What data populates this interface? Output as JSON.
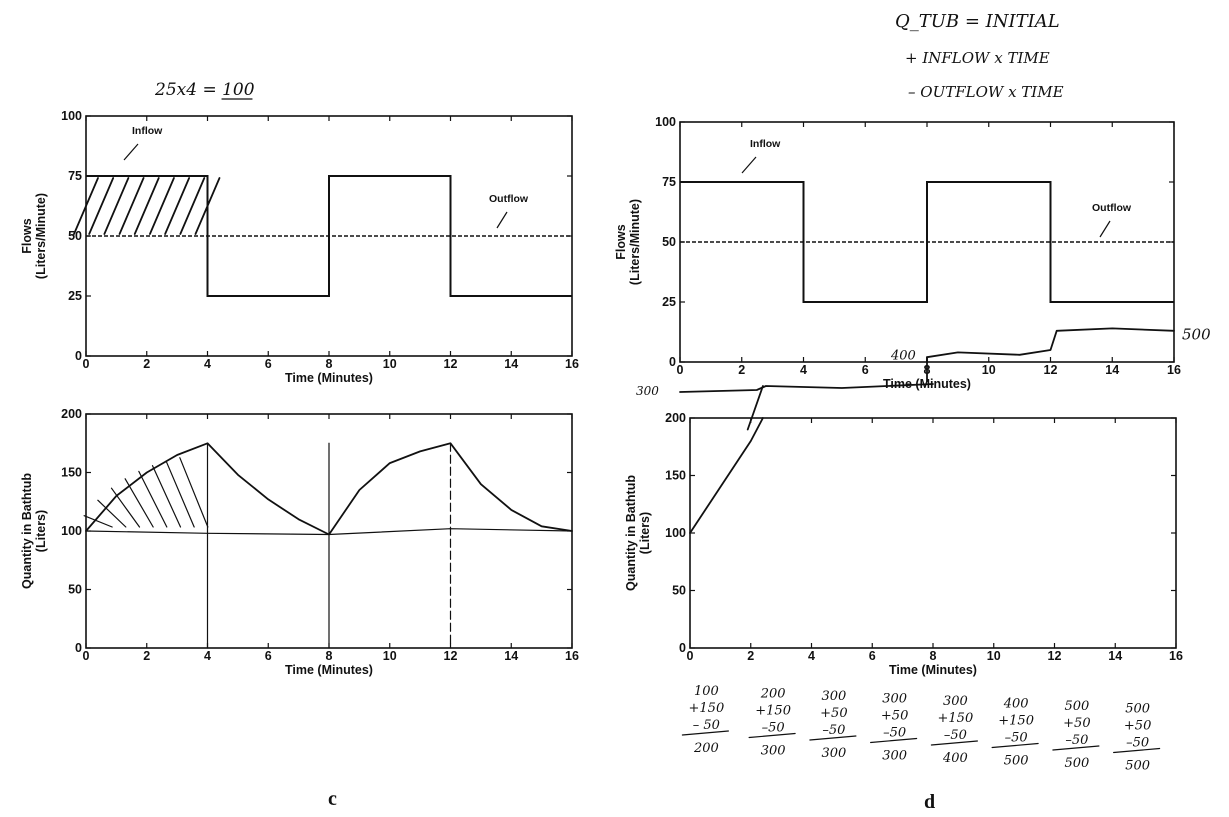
{
  "chart_data": [
    {
      "id": "c",
      "panel_label": "c",
      "handwritten_note": "25x4 = 100",
      "subplots": [
        {
          "type": "line",
          "xlabel": "Time (Minutes)",
          "ylabel": [
            "Flows",
            "(Liters/Minute)"
          ],
          "xlim": [
            0,
            16
          ],
          "ylim": [
            0,
            100
          ],
          "xticks": [
            0,
            2,
            4,
            6,
            8,
            10,
            12,
            14,
            16
          ],
          "yticks": [
            0,
            25,
            50,
            75,
            100
          ],
          "series": [
            {
              "name": "Inflow",
              "style": "solid",
              "x": [
                0,
                4,
                4,
                8,
                8,
                12,
                12,
                16
              ],
              "y": [
                75,
                75,
                25,
                25,
                75,
                75,
                25,
                25
              ]
            },
            {
              "name": "Outflow",
              "style": "dashed",
              "x": [
                0,
                16
              ],
              "y": [
                50,
                50
              ]
            }
          ],
          "annotations": [
            "Inflow",
            "Outflow"
          ],
          "hatched_region": {
            "x": [
              0,
              4
            ],
            "y": [
              50,
              75
            ]
          }
        },
        {
          "type": "line",
          "xlabel": "Time (Minutes)",
          "ylabel": [
            "Quantity in Bathtub",
            "(Liters)"
          ],
          "xlim": [
            0,
            16
          ],
          "ylim": [
            0,
            200
          ],
          "xticks": [
            0,
            2,
            4,
            6,
            8,
            10,
            12,
            14,
            16
          ],
          "yticks": [
            0,
            50,
            100,
            150,
            200
          ],
          "series": [
            {
              "name": "",
              "style": "hand-drawn",
              "x": [
                0,
                1,
                2,
                3,
                4,
                5,
                6,
                7,
                8,
                9,
                10,
                11,
                12,
                13,
                14,
                15,
                16
              ],
              "y": [
                100,
                130,
                150,
                165,
                175,
                148,
                127,
                110,
                97,
                135,
                158,
                168,
                175,
                140,
                118,
                104,
                100
              ]
            },
            {
              "name": "",
              "style": "hand-drawn",
              "x": [
                0,
                4,
                8,
                12,
                16
              ],
              "y": [
                100,
                98,
                97,
                102,
                100
              ]
            }
          ]
        }
      ]
    },
    {
      "id": "d",
      "panel_label": "d",
      "handwritten_note": [
        "Q_TUB = INITIAL",
        "+ INFLOW x TIME",
        "– OUTFLOW x TIME"
      ],
      "subplots": [
        {
          "type": "line",
          "xlabel": "Time (Minutes)",
          "ylabel": [
            "Flows",
            "(Liters/Minute)"
          ],
          "xlim": [
            0,
            16
          ],
          "ylim": [
            0,
            100
          ],
          "xticks": [
            0,
            2,
            4,
            6,
            8,
            10,
            12,
            14,
            16
          ],
          "yticks": [
            0,
            25,
            50,
            75,
            100
          ],
          "series": [
            {
              "name": "Inflow",
              "style": "solid",
              "x": [
                0,
                4,
                4,
                8,
                8,
                12,
                12,
                16
              ],
              "y": [
                75,
                75,
                25,
                25,
                75,
                75,
                25,
                25
              ]
            },
            {
              "name": "Outflow",
              "style": "dashed",
              "x": [
                0,
                16
              ],
              "y": [
                50,
                50
              ]
            }
          ],
          "annotations": [
            "Inflow",
            "Outflow"
          ],
          "handwritten_labels": [
            "400",
            "500"
          ]
        },
        {
          "type": "line",
          "xlabel": "Time (Minutes)",
          "ylabel": [
            "Quantity in Bathtub",
            "(Liters)"
          ],
          "xlim": [
            0,
            16
          ],
          "ylim": [
            0,
            200
          ],
          "xticks": [
            0,
            2,
            4,
            6,
            8,
            10,
            12,
            14,
            16
          ],
          "yticks": [
            0,
            50,
            100,
            150,
            200
          ],
          "series": [
            {
              "name": "",
              "style": "hand-drawn",
              "x": [
                0,
                1,
                2,
                2.4
              ],
              "y": [
                100,
                140,
                180,
                200
              ]
            }
          ],
          "handwritten_labels": [
            "300"
          ],
          "calculations": [
            [
              "100",
              "+150",
              "– 50",
              "200"
            ],
            [
              "200",
              "+150",
              "–50",
              "300"
            ],
            [
              "300",
              "+50",
              "–50",
              "300"
            ],
            [
              "300",
              "+50",
              "–50",
              "300"
            ],
            [
              "300",
              "+150",
              "–50",
              "400"
            ],
            [
              "400",
              "+150",
              "–50",
              "500"
            ],
            [
              "500",
              "+50",
              "–50",
              "500"
            ],
            [
              "500",
              "+50",
              "–50",
              "500"
            ]
          ]
        }
      ]
    }
  ]
}
